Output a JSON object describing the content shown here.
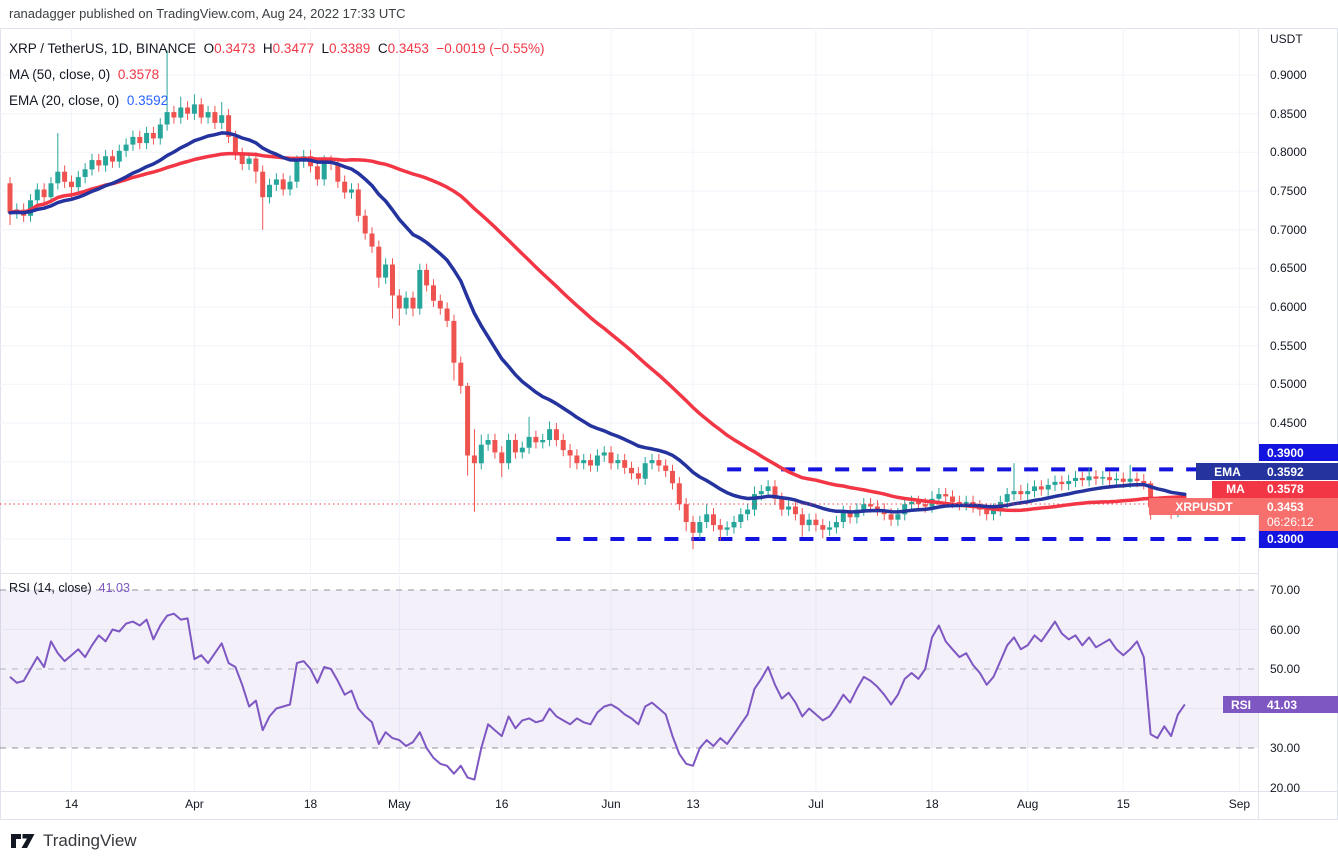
{
  "header": {
    "attribution": "ranadagger published on TradingView.com, Aug 24, 2022 17:33 UTC"
  },
  "watermark": {
    "brand": "TradingView"
  },
  "legend": {
    "symbol": "XRP / TetherUS, 1D, BINANCE",
    "o_label": "O",
    "o": "0.3473",
    "h_label": "H",
    "h": "0.3477",
    "l_label": "L",
    "l": "0.3389",
    "c_label": "C",
    "c": "0.3453",
    "change": "−0.0019 (−0.55%)",
    "ma_label": "MA (50, close, 0)",
    "ma_value": "0.3578",
    "ema_label": "EMA (20, close, 0)",
    "ema_value": "0.3592"
  },
  "rsi_legend": {
    "label": "RSI (14, close)",
    "value": "41.03"
  },
  "price_axis": {
    "unit": "USDT",
    "labels": [
      {
        "v": 0.9,
        "t": "0.9000"
      },
      {
        "v": 0.85,
        "t": "0.8500"
      },
      {
        "v": 0.8,
        "t": "0.8000"
      },
      {
        "v": 0.75,
        "t": "0.7500"
      },
      {
        "v": 0.7,
        "t": "0.7000"
      },
      {
        "v": 0.65,
        "t": "0.6500"
      },
      {
        "v": 0.6,
        "t": "0.6000"
      },
      {
        "v": 0.55,
        "t": "0.5500"
      },
      {
        "v": 0.5,
        "t": "0.5000"
      },
      {
        "v": 0.45,
        "t": "0.4500"
      }
    ]
  },
  "badges": {
    "upper_level": "0.3900",
    "ema_tag": "EMA",
    "ema_value": "0.3592",
    "ma_tag": "MA",
    "ma_value": "0.3578",
    "symbol_tag": "XRPUSDT",
    "last_price": "0.3453",
    "countdown": "06:26:12",
    "lower_level": "0.3000",
    "rsi_tag": "RSI",
    "rsi_value": "41.03"
  },
  "rsi_axis": {
    "labels": [
      {
        "v": 70,
        "t": "70.00"
      },
      {
        "v": 60,
        "t": "60.00"
      },
      {
        "v": 50,
        "t": "50.00"
      },
      {
        "v": 30,
        "t": "30.00"
      },
      {
        "v": 20,
        "t": "20.00"
      }
    ]
  },
  "colors": {
    "up": "#26a69a",
    "down": "#ef5350",
    "ma50": "#f23645",
    "ema20": "#24339e",
    "level_blue": "#1414e0",
    "price_line": "#f23645",
    "rsi": "#7e57c2",
    "rsi_band_fill": "rgba(126,87,194,0.09)",
    "grid": "#f0f3fa",
    "axis_border": "#e0e3eb",
    "text": "#131722"
  },
  "chart_data": {
    "type": "candlestick",
    "title": "XRP / TetherUS, 1D, BINANCE",
    "interval": "1D",
    "ylabel": "USDT",
    "price_ylim": [
      0.2573,
      0.9608
    ],
    "price_gridlines": [
      0.9,
      0.85,
      0.8,
      0.75,
      0.7,
      0.65,
      0.6,
      0.55,
      0.5,
      0.45,
      0.4,
      0.35,
      0.3
    ],
    "levels": [
      {
        "value": 0.39,
        "style": "dashed",
        "start_index": 105,
        "label": "0.3900"
      },
      {
        "value": 0.3,
        "style": "dashed",
        "start_index": 80,
        "label": "0.3000"
      }
    ],
    "last_price_line": 0.3453,
    "overlays": [
      {
        "type": "sma",
        "period": 50,
        "source": "close",
        "last": 0.3578
      },
      {
        "type": "ema",
        "period": 20,
        "source": "close",
        "last": 0.3592
      }
    ],
    "x_ticks": [
      {
        "i": 9,
        "label": "14"
      },
      {
        "i": 27,
        "label": "Apr"
      },
      {
        "i": 44,
        "label": "18"
      },
      {
        "i": 57,
        "label": "May"
      },
      {
        "i": 72,
        "label": "16"
      },
      {
        "i": 88,
        "label": "Jun"
      },
      {
        "i": 100,
        "label": "13"
      },
      {
        "i": 118,
        "label": "Jul"
      },
      {
        "i": 135,
        "label": "18"
      },
      {
        "i": 149,
        "label": "Aug"
      },
      {
        "i": 163,
        "label": "15"
      },
      {
        "i": 180,
        "label": "Sep"
      }
    ],
    "candles": [
      [
        0.76,
        0.768,
        0.706,
        0.722
      ],
      [
        0.722,
        0.734,
        0.714,
        0.726
      ],
      [
        0.726,
        0.734,
        0.71,
        0.718
      ],
      [
        0.718,
        0.746,
        0.71,
        0.738
      ],
      [
        0.738,
        0.76,
        0.73,
        0.752
      ],
      [
        0.752,
        0.76,
        0.734,
        0.742
      ],
      [
        0.742,
        0.768,
        0.734,
        0.76
      ],
      [
        0.76,
        0.825,
        0.752,
        0.775
      ],
      [
        0.775,
        0.783,
        0.754,
        0.762
      ],
      [
        0.762,
        0.77,
        0.74,
        0.755
      ],
      [
        0.755,
        0.776,
        0.747,
        0.768
      ],
      [
        0.768,
        0.786,
        0.76,
        0.778
      ],
      [
        0.778,
        0.798,
        0.77,
        0.79
      ],
      [
        0.79,
        0.798,
        0.775,
        0.783
      ],
      [
        0.783,
        0.803,
        0.775,
        0.795
      ],
      [
        0.795,
        0.803,
        0.78,
        0.788
      ],
      [
        0.788,
        0.81,
        0.78,
        0.802
      ],
      [
        0.802,
        0.818,
        0.794,
        0.81
      ],
      [
        0.81,
        0.828,
        0.802,
        0.82
      ],
      [
        0.82,
        0.828,
        0.804,
        0.812
      ],
      [
        0.812,
        0.833,
        0.804,
        0.825
      ],
      [
        0.825,
        0.833,
        0.81,
        0.818
      ],
      [
        0.818,
        0.844,
        0.81,
        0.836
      ],
      [
        0.836,
        0.932,
        0.828,
        0.852
      ],
      [
        0.852,
        0.86,
        0.837,
        0.845
      ],
      [
        0.845,
        0.872,
        0.837,
        0.858
      ],
      [
        0.858,
        0.866,
        0.842,
        0.85
      ],
      [
        0.85,
        0.875,
        0.842,
        0.862
      ],
      [
        0.862,
        0.87,
        0.837,
        0.845
      ],
      [
        0.845,
        0.86,
        0.837,
        0.852
      ],
      [
        0.852,
        0.86,
        0.83,
        0.838
      ],
      [
        0.838,
        0.865,
        0.83,
        0.848
      ],
      [
        0.848,
        0.856,
        0.812,
        0.82
      ],
      [
        0.82,
        0.828,
        0.79,
        0.798
      ],
      [
        0.798,
        0.806,
        0.777,
        0.785
      ],
      [
        0.785,
        0.8,
        0.777,
        0.792
      ],
      [
        0.792,
        0.8,
        0.76,
        0.775
      ],
      [
        0.775,
        0.783,
        0.7,
        0.742
      ],
      [
        0.742,
        0.766,
        0.734,
        0.758
      ],
      [
        0.758,
        0.773,
        0.75,
        0.765
      ],
      [
        0.765,
        0.773,
        0.744,
        0.752
      ],
      [
        0.752,
        0.77,
        0.744,
        0.762
      ],
      [
        0.762,
        0.796,
        0.754,
        0.788
      ],
      [
        0.788,
        0.803,
        0.78,
        0.795
      ],
      [
        0.795,
        0.803,
        0.774,
        0.782
      ],
      [
        0.782,
        0.79,
        0.757,
        0.765
      ],
      [
        0.765,
        0.796,
        0.757,
        0.788
      ],
      [
        0.788,
        0.796,
        0.777,
        0.785
      ],
      [
        0.785,
        0.793,
        0.754,
        0.762
      ],
      [
        0.762,
        0.77,
        0.74,
        0.748
      ],
      [
        0.748,
        0.76,
        0.74,
        0.752
      ],
      [
        0.752,
        0.76,
        0.71,
        0.718
      ],
      [
        0.718,
        0.726,
        0.687,
        0.695
      ],
      [
        0.695,
        0.703,
        0.67,
        0.678
      ],
      [
        0.678,
        0.686,
        0.625,
        0.638
      ],
      [
        0.638,
        0.663,
        0.63,
        0.655
      ],
      [
        0.655,
        0.663,
        0.585,
        0.615
      ],
      [
        0.615,
        0.623,
        0.576,
        0.598
      ],
      [
        0.598,
        0.62,
        0.59,
        0.612
      ],
      [
        0.612,
        0.62,
        0.588,
        0.598
      ],
      [
        0.598,
        0.656,
        0.59,
        0.648
      ],
      [
        0.648,
        0.656,
        0.62,
        0.628
      ],
      [
        0.628,
        0.636,
        0.6,
        0.608
      ],
      [
        0.608,
        0.616,
        0.59,
        0.598
      ],
      [
        0.598,
        0.606,
        0.574,
        0.582
      ],
      [
        0.582,
        0.59,
        0.505,
        0.528
      ],
      [
        0.528,
        0.536,
        0.488,
        0.498
      ],
      [
        0.498,
        0.502,
        0.382,
        0.408
      ],
      [
        0.408,
        0.442,
        0.335,
        0.398
      ],
      [
        0.398,
        0.435,
        0.39,
        0.422
      ],
      [
        0.422,
        0.436,
        0.414,
        0.428
      ],
      [
        0.428,
        0.436,
        0.404,
        0.412
      ],
      [
        0.412,
        0.42,
        0.38,
        0.398
      ],
      [
        0.398,
        0.436,
        0.39,
        0.428
      ],
      [
        0.428,
        0.436,
        0.404,
        0.412
      ],
      [
        0.412,
        0.426,
        0.404,
        0.418
      ],
      [
        0.418,
        0.458,
        0.41,
        0.432
      ],
      [
        0.432,
        0.44,
        0.417,
        0.425
      ],
      [
        0.425,
        0.436,
        0.417,
        0.428
      ],
      [
        0.428,
        0.452,
        0.42,
        0.442
      ],
      [
        0.442,
        0.45,
        0.42,
        0.428
      ],
      [
        0.428,
        0.436,
        0.407,
        0.415
      ],
      [
        0.415,
        0.423,
        0.392,
        0.408
      ],
      [
        0.408,
        0.416,
        0.39,
        0.398
      ],
      [
        0.398,
        0.41,
        0.39,
        0.402
      ],
      [
        0.402,
        0.41,
        0.387,
        0.395
      ],
      [
        0.395,
        0.416,
        0.387,
        0.408
      ],
      [
        0.408,
        0.42,
        0.4,
        0.412
      ],
      [
        0.412,
        0.42,
        0.39,
        0.398
      ],
      [
        0.398,
        0.41,
        0.39,
        0.402
      ],
      [
        0.402,
        0.41,
        0.384,
        0.392
      ],
      [
        0.392,
        0.4,
        0.377,
        0.385
      ],
      [
        0.385,
        0.393,
        0.37,
        0.378
      ],
      [
        0.378,
        0.406,
        0.37,
        0.398
      ],
      [
        0.398,
        0.41,
        0.39,
        0.402
      ],
      [
        0.402,
        0.41,
        0.387,
        0.395
      ],
      [
        0.395,
        0.403,
        0.38,
        0.388
      ],
      [
        0.388,
        0.396,
        0.364,
        0.372
      ],
      [
        0.372,
        0.38,
        0.337,
        0.345
      ],
      [
        0.345,
        0.353,
        0.31,
        0.322
      ],
      [
        0.322,
        0.33,
        0.287,
        0.308
      ],
      [
        0.308,
        0.33,
        0.3,
        0.322
      ],
      [
        0.322,
        0.345,
        0.314,
        0.332
      ],
      [
        0.332,
        0.34,
        0.31,
        0.318
      ],
      [
        0.318,
        0.326,
        0.298,
        0.312
      ],
      [
        0.312,
        0.323,
        0.304,
        0.315
      ],
      [
        0.315,
        0.33,
        0.307,
        0.322
      ],
      [
        0.322,
        0.34,
        0.314,
        0.332
      ],
      [
        0.332,
        0.346,
        0.324,
        0.338
      ],
      [
        0.338,
        0.368,
        0.33,
        0.358
      ],
      [
        0.358,
        0.37,
        0.35,
        0.362
      ],
      [
        0.362,
        0.376,
        0.354,
        0.368
      ],
      [
        0.368,
        0.376,
        0.344,
        0.352
      ],
      [
        0.352,
        0.36,
        0.33,
        0.338
      ],
      [
        0.338,
        0.35,
        0.33,
        0.342
      ],
      [
        0.342,
        0.35,
        0.324,
        0.332
      ],
      [
        0.332,
        0.34,
        0.303,
        0.318
      ],
      [
        0.318,
        0.333,
        0.31,
        0.325
      ],
      [
        0.325,
        0.333,
        0.31,
        0.318
      ],
      [
        0.318,
        0.326,
        0.301,
        0.312
      ],
      [
        0.312,
        0.323,
        0.304,
        0.315
      ],
      [
        0.315,
        0.33,
        0.307,
        0.322
      ],
      [
        0.322,
        0.343,
        0.314,
        0.335
      ],
      [
        0.335,
        0.343,
        0.32,
        0.328
      ],
      [
        0.328,
        0.346,
        0.32,
        0.338
      ],
      [
        0.338,
        0.353,
        0.33,
        0.345
      ],
      [
        0.345,
        0.353,
        0.334,
        0.342
      ],
      [
        0.342,
        0.35,
        0.33,
        0.338
      ],
      [
        0.338,
        0.346,
        0.324,
        0.332
      ],
      [
        0.332,
        0.34,
        0.317,
        0.325
      ],
      [
        0.325,
        0.34,
        0.317,
        0.332
      ],
      [
        0.332,
        0.353,
        0.324,
        0.345
      ],
      [
        0.345,
        0.356,
        0.337,
        0.348
      ],
      [
        0.348,
        0.356,
        0.337,
        0.345
      ],
      [
        0.345,
        0.353,
        0.334,
        0.342
      ],
      [
        0.342,
        0.362,
        0.334,
        0.352
      ],
      [
        0.352,
        0.366,
        0.344,
        0.358
      ],
      [
        0.358,
        0.366,
        0.347,
        0.355
      ],
      [
        0.355,
        0.363,
        0.34,
        0.348
      ],
      [
        0.348,
        0.356,
        0.337,
        0.345
      ],
      [
        0.345,
        0.356,
        0.337,
        0.348
      ],
      [
        0.348,
        0.356,
        0.334,
        0.342
      ],
      [
        0.342,
        0.35,
        0.33,
        0.338
      ],
      [
        0.338,
        0.346,
        0.324,
        0.332
      ],
      [
        0.332,
        0.346,
        0.324,
        0.338
      ],
      [
        0.338,
        0.356,
        0.33,
        0.348
      ],
      [
        0.348,
        0.366,
        0.34,
        0.358
      ],
      [
        0.358,
        0.398,
        0.35,
        0.362
      ],
      [
        0.362,
        0.37,
        0.35,
        0.358
      ],
      [
        0.358,
        0.372,
        0.35,
        0.362
      ],
      [
        0.362,
        0.376,
        0.354,
        0.368
      ],
      [
        0.368,
        0.376,
        0.356,
        0.364
      ],
      [
        0.364,
        0.378,
        0.356,
        0.37
      ],
      [
        0.37,
        0.382,
        0.362,
        0.374
      ],
      [
        0.374,
        0.382,
        0.363,
        0.371
      ],
      [
        0.371,
        0.383,
        0.363,
        0.375
      ],
      [
        0.375,
        0.388,
        0.367,
        0.379
      ],
      [
        0.379,
        0.387,
        0.368,
        0.376
      ],
      [
        0.376,
        0.392,
        0.368,
        0.381
      ],
      [
        0.381,
        0.389,
        0.37,
        0.378
      ],
      [
        0.378,
        0.388,
        0.37,
        0.38
      ],
      [
        0.38,
        0.388,
        0.368,
        0.376
      ],
      [
        0.376,
        0.386,
        0.368,
        0.378
      ],
      [
        0.378,
        0.386,
        0.366,
        0.374
      ],
      [
        0.374,
        0.396,
        0.366,
        0.378
      ],
      [
        0.378,
        0.386,
        0.367,
        0.375
      ],
      [
        0.375,
        0.384,
        0.364,
        0.372
      ],
      [
        0.372,
        0.375,
        0.325,
        0.341
      ],
      [
        0.341,
        0.349,
        0.331,
        0.339
      ],
      [
        0.339,
        0.352,
        0.331,
        0.344
      ],
      [
        0.344,
        0.352,
        0.326,
        0.336
      ],
      [
        0.336,
        0.355,
        0.328,
        0.347
      ],
      [
        0.3473,
        0.3477,
        0.3389,
        0.3453
      ]
    ],
    "indicator_pane": {
      "type": "line",
      "name": "RSI (14, close)",
      "last": 41.03,
      "ylim": [
        19.1,
        73.8
      ],
      "band": [
        30,
        70
      ],
      "mid": 50,
      "gridlines": [
        60,
        40
      ],
      "values": [
        48,
        46.5,
        47,
        50,
        53,
        50.5,
        57,
        54,
        52,
        53.5,
        55,
        53,
        56,
        58.5,
        57,
        60,
        59.5,
        61.5,
        62,
        61,
        62.5,
        57.5,
        61,
        63.5,
        64,
        62.5,
        62.8,
        52.5,
        53.5,
        51.5,
        54,
        56.5,
        51.5,
        50.5,
        46,
        40.5,
        42,
        34.5,
        38,
        40,
        40.5,
        41,
        51.5,
        52,
        50,
        46.5,
        50.5,
        50,
        47,
        43.5,
        44.5,
        40,
        38,
        36.5,
        31,
        34,
        32.5,
        32,
        30.5,
        31.5,
        34,
        30,
        27.5,
        26,
        25.5,
        23.5,
        25.5,
        22.5,
        22,
        30,
        36,
        34.5,
        33,
        38,
        35,
        37,
        37.5,
        36.5,
        37,
        40,
        38,
        37,
        36,
        37.5,
        36.5,
        36,
        39,
        40.5,
        41,
        40,
        38.5,
        37.5,
        36,
        40.5,
        41.5,
        40,
        38.5,
        33,
        28.5,
        26,
        25.5,
        30,
        32,
        30.5,
        32.5,
        31,
        33.5,
        36,
        38.5,
        45,
        47.5,
        50.5,
        46,
        42.5,
        44,
        41.5,
        38,
        40,
        38.5,
        37,
        38,
        40.5,
        43.5,
        41.5,
        45,
        48,
        47,
        45.5,
        43.5,
        41,
        43.5,
        47.5,
        49,
        47.5,
        50,
        58,
        61,
        57,
        55,
        53,
        54,
        51,
        49,
        46,
        48,
        52,
        56,
        58,
        55,
        56,
        58.5,
        57,
        59.5,
        62,
        59,
        57.5,
        58.5,
        56,
        58,
        55.5,
        56.5,
        57.5,
        55,
        53.5,
        55,
        57,
        53,
        33.5,
        32.5,
        35.5,
        33,
        38.5,
        41.03
      ]
    }
  }
}
